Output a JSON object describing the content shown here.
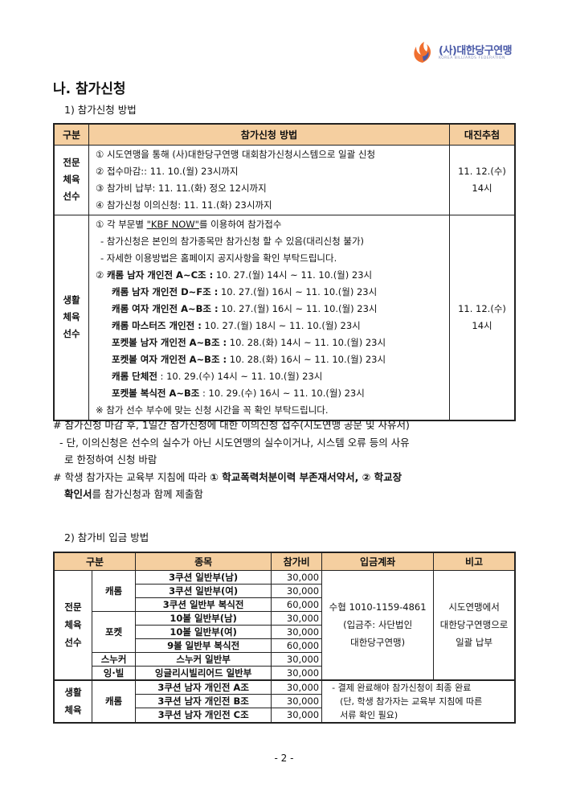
{
  "logo": {
    "name": "(사)대한당구연맹",
    "sub": "KOREA BILLIARDS FEDERATION",
    "colors": [
      "#f07030",
      "#4a5aa8"
    ]
  },
  "title": "나. 참가신청",
  "section1": {
    "heading": "1) 참가신청 방법",
    "headers": [
      "구분",
      "참가신청 방법",
      "대진추첨"
    ],
    "rows": [
      {
        "category": "전문\n체육\n선수",
        "lines": [
          "① 시도연맹을 통해 (사)대한당구연맹 대회참가신청시스템으로 일괄 신청",
          "② 접수마감:: 11. 10.(월) 23시까지",
          "③ 참가비 납부: 11. 11.(화) 정오 12시까지",
          "④ 참가신청 이의신청: 11. 11.(화) 23시까지"
        ],
        "draw": "11. 12.(수)\n14시"
      },
      {
        "category": "생활\n체육\n선수",
        "intro": {
          "prefix": "① 각 부문별 ",
          "link": "\"KBF NOW\"",
          "suffix": "를 이용하여 참가접수"
        },
        "lines": [
          "- 참가신청은 본인의 참가종목만 참가신청 할 수 있음(대리신청 불가)",
          "- 자세한 이용방법은 홈페이지 공지사항을 확인 부탁드립니다."
        ],
        "schedule": [
          {
            "prefix": "② ",
            "event": "캐롬 남자 개인전 A~C조 :",
            "time": " 10. 27.(월) 14시 ~ 11. 10.(월) 23시"
          },
          {
            "prefix": "",
            "event": "캐롬 남자 개인전 D~F조 :",
            "time": " 10. 27.(월) 16시 ~ 11. 10.(월) 23시"
          },
          {
            "prefix": "",
            "event": "캐롬 여자 개인전 A~B조 :",
            "time": " 10. 27.(월) 16시 ~ 11. 10.(월) 23시"
          },
          {
            "prefix": "",
            "event": "캐롬 마스터즈 개인전 :",
            "time": " 10. 27.(월) 18시 ~ 11. 10.(월) 23시"
          },
          {
            "prefix": "",
            "event": "포켓볼 남자 개인전 A~B조 :",
            "time": " 10. 28.(화) 14시 ~ 11. 10.(월) 23시"
          },
          {
            "prefix": "",
            "event": "포켓볼 여자 개인전 A~B조 :",
            "time": " 10. 28.(화) 16시 ~ 11. 10.(월) 23시"
          },
          {
            "prefix": "",
            "event": "캐롬 단체전",
            "time": " : 10. 29.(수) 14시 ~ 11. 10.(월) 23시"
          },
          {
            "prefix": "",
            "event": "포켓볼 복식전 A~B조",
            "time": " : 10. 29.(수) 16시 ~ 11. 10.(월) 23시"
          }
        ],
        "footer": "※ 참가 선수 부수에 맞는 신청 시간을 꼭 확인 부탁드립니다.",
        "draw": "11. 12.(수)\n14시"
      }
    ]
  },
  "notes": {
    "n1": "# 참가신청 마감 후, 1일간 참가신청에 대한 이의신청 접수(시도연맹 공문 및 사유서)",
    "n2": "- 단, 이의신청은 선수의 실수가 아닌 시도연맹의 실수이거나, 시스템 오류 등의 사유",
    "n3": "로 한정하여 신청 바람",
    "n4a": "# 학생 참가자는 교육부 지침에 따라 ",
    "n4b": "① 학교폭력처분이력 부존재서약서, ② 학교장",
    "n5a": "확인서",
    "n5b": "를 참가신청과 함께 제출함"
  },
  "section2": {
    "heading": "2) 참가비 입금 방법",
    "headers": [
      "구분",
      "종목",
      "참가비",
      "입금계좌",
      "비고"
    ],
    "groups": [
      "전문\n체육\n선수",
      "생활\n체육"
    ],
    "subgroups": [
      "캐롬",
      "포켓",
      "스누커",
      "잉·빌",
      "캐롬"
    ],
    "rows": [
      {
        "event": "3쿠션 일반부(남)",
        "fee": "30,000"
      },
      {
        "event": "3쿠션 일반부(여)",
        "fee": "30,000"
      },
      {
        "event": "3쿠션 일반부 복식전",
        "fee": "60,000"
      },
      {
        "event": "10볼 일반부(남)",
        "fee": "30,000"
      },
      {
        "event": "10볼 일반부(여)",
        "fee": "30,000"
      },
      {
        "event": "9볼 일반부 복식전",
        "fee": "60,000"
      },
      {
        "event": "스누커 일반부",
        "fee": "30,000"
      },
      {
        "event": "잉글리시빌리어드 일반부",
        "fee": "30,000"
      },
      {
        "event": "3쿠션 남자 개인전 A조",
        "fee": "30,000"
      },
      {
        "event": "3쿠션 남자 개인전 B조",
        "fee": "30,000"
      },
      {
        "event": "3쿠션 남자 개인전 C조",
        "fee": "30,000"
      }
    ],
    "account": "수협 1010-1159-4861\n(입금주: 사단법인\n대한당구연맹)",
    "remark": "시도연맹에서\n대한당구연맹으로\n일괄 납부",
    "note": [
      "- 결제 완료해야 참가신청이 최종 완료",
      "(단, 학생 참가자는 교육부 지침에 따른",
      "서류 확인 필요)"
    ]
  },
  "page_number": "- 2 -",
  "colors": {
    "header_fill": "#f5cfa0"
  }
}
